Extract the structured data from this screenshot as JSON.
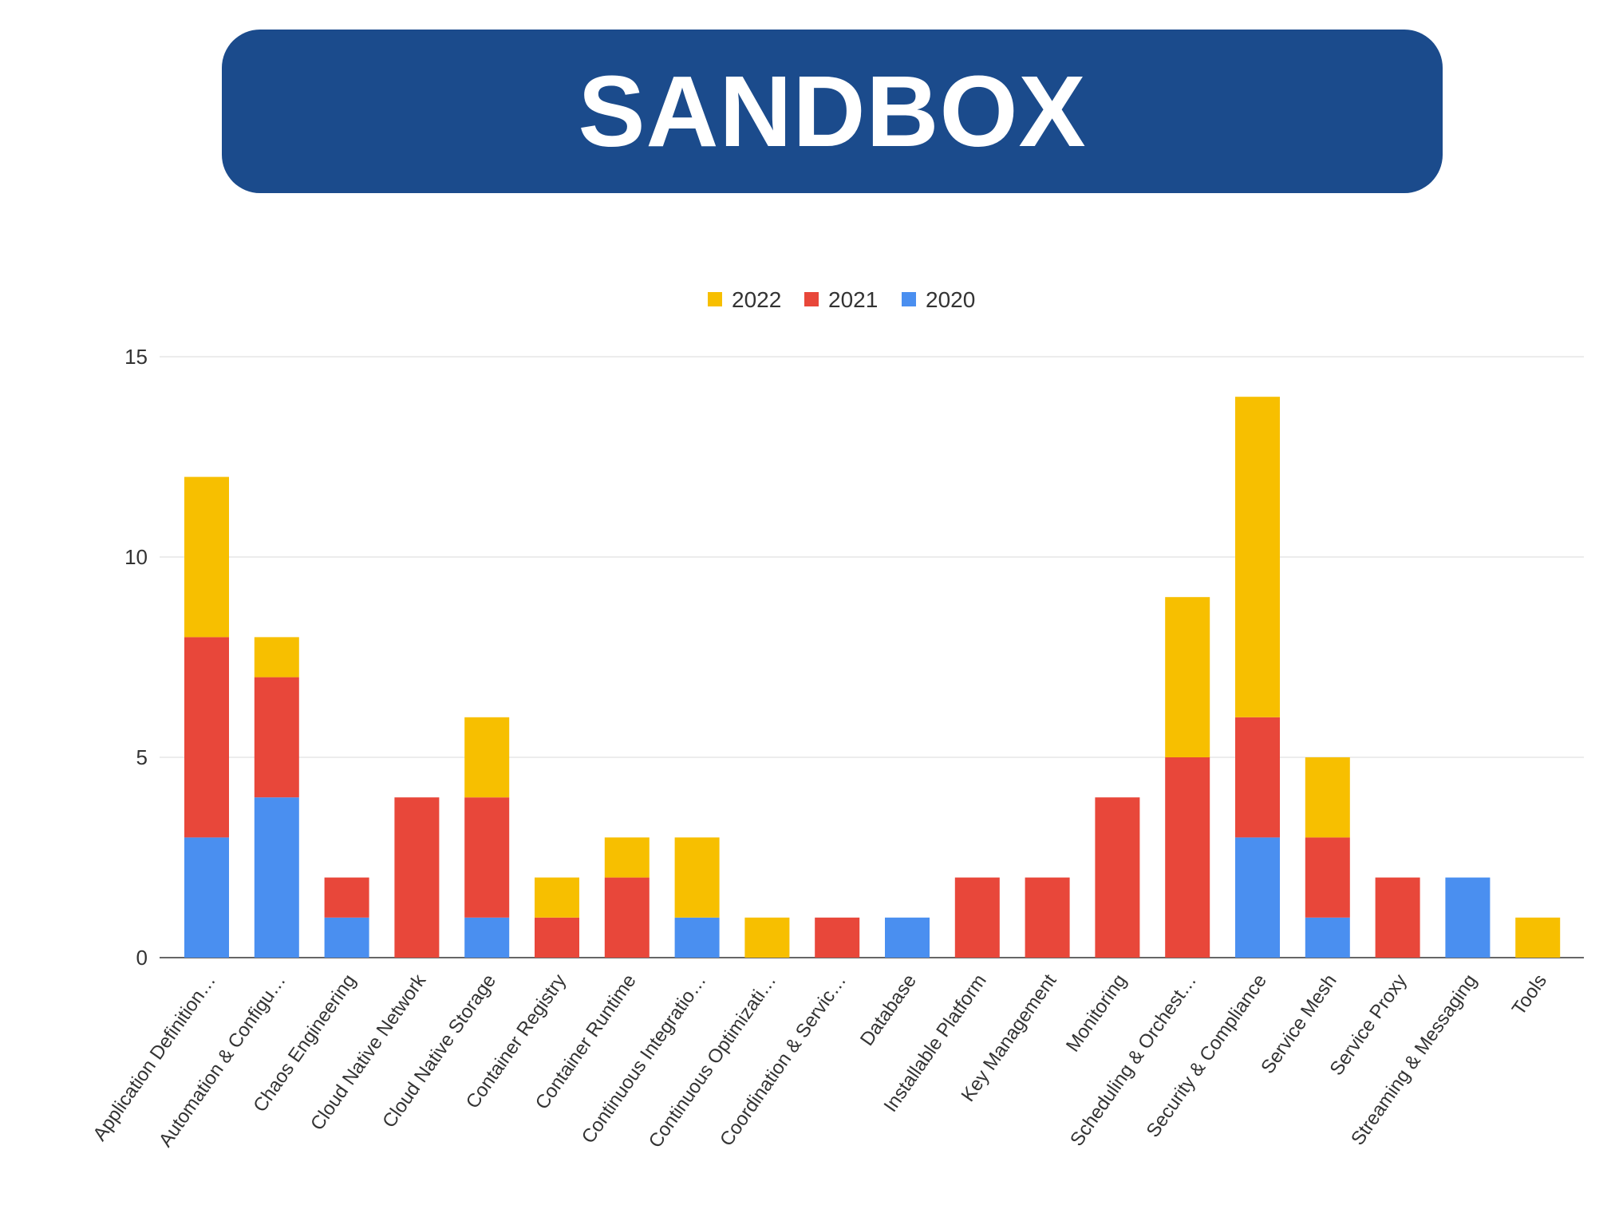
{
  "banner": {
    "title": "SANDBOX"
  },
  "chart_data": {
    "type": "bar",
    "stacked": true,
    "title": "",
    "xlabel": "",
    "ylabel": "",
    "ylim": [
      0,
      15
    ],
    "yticks": [
      0,
      5,
      10,
      15
    ],
    "grid": true,
    "legend_position": "top-center",
    "categories": [
      "Application Definition…",
      "Automation & Configu…",
      "Chaos Engineering",
      "Cloud Native Network",
      "Cloud Native Storage",
      "Container Registry",
      "Container Runtime",
      "Continuous Integratio…",
      "Continuous Optimizati…",
      "Coordination & Servic…",
      "Database",
      "Installable Platform",
      "Key Management",
      "Monitoring",
      "Scheduling & Orchest…",
      "Security & Compliance",
      "Service Mesh",
      "Service Proxy",
      "Streaming & Messaging",
      "Tools"
    ],
    "series": [
      {
        "name": "2020",
        "color": "#4a8ff0",
        "values": [
          3,
          4,
          1,
          0,
          1,
          0,
          0,
          1,
          0,
          0,
          1,
          0,
          0,
          0,
          0,
          3,
          1,
          0,
          2,
          0
        ]
      },
      {
        "name": "2021",
        "color": "#e8473a",
        "values": [
          5,
          3,
          1,
          4,
          3,
          1,
          2,
          0,
          0,
          1,
          0,
          2,
          2,
          4,
          5,
          3,
          2,
          2,
          0,
          0
        ]
      },
      {
        "name": "2022",
        "color": "#f7bf00",
        "values": [
          4,
          1,
          0,
          0,
          2,
          1,
          1,
          2,
          1,
          0,
          0,
          0,
          0,
          0,
          4,
          8,
          2,
          0,
          0,
          1
        ]
      }
    ],
    "legend_order": [
      "2022",
      "2021",
      "2020"
    ]
  }
}
